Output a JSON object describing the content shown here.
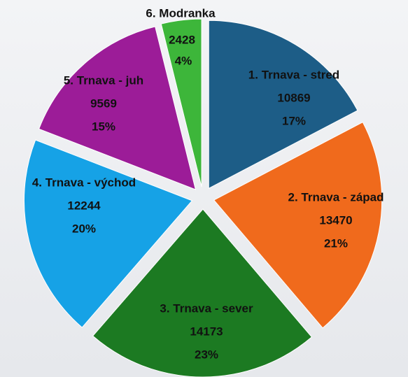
{
  "chart_data": {
    "type": "pie",
    "categories": [
      "1. Trnava - stred",
      "2. Trnava - západ",
      "3. Trnava - sever",
      "4. Trnava - východ",
      "5. Trnava - juh",
      "6. Modranka"
    ],
    "values": [
      10869,
      13470,
      14173,
      12244,
      9569,
      2428
    ],
    "percent_labels": [
      "17%",
      "21%",
      "23%",
      "20%",
      "15%",
      "4%"
    ],
    "colors": [
      "#1d5d87",
      "#f06a1c",
      "#1c7a22",
      "#16a2e6",
      "#9c1c98",
      "#3db63a"
    ]
  }
}
